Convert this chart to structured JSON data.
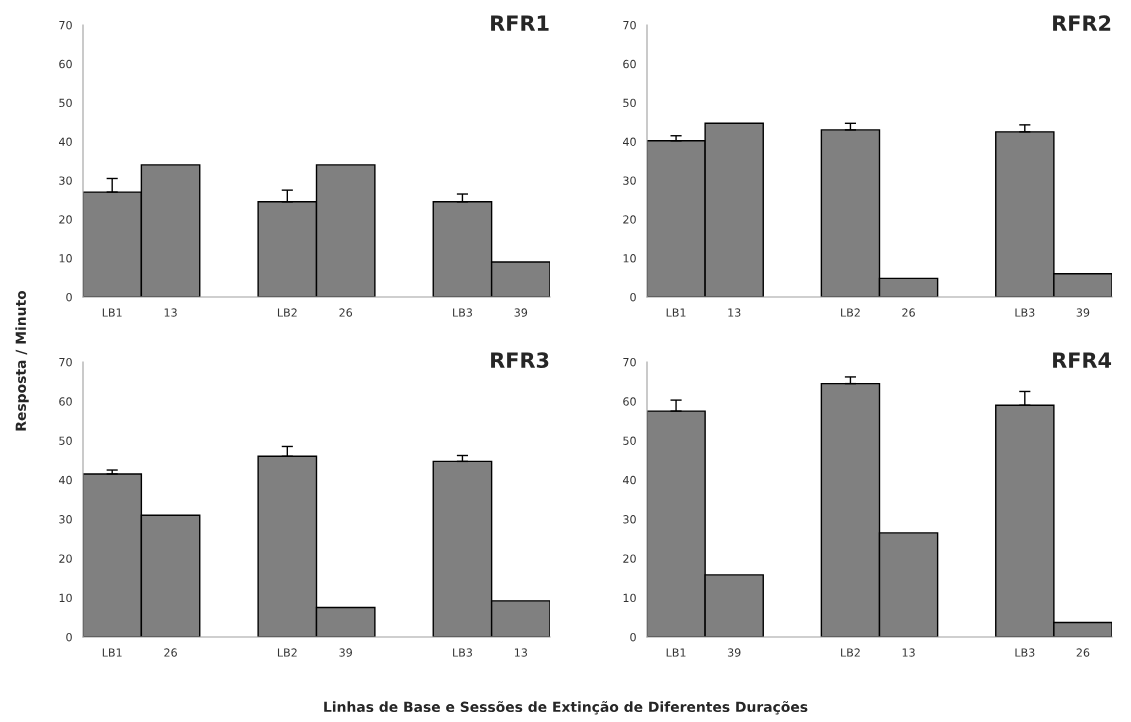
{
  "chart_data": [
    {
      "type": "bar",
      "title": "RFR1",
      "ylabel": "Resposta / Minuto",
      "xlabel": "Linhas de Base e Sessões de Extinção de Diferentes Durações",
      "categories": [
        "LB1",
        "13",
        null,
        "LB2",
        "26",
        null,
        "LB3",
        "39"
      ],
      "values": [
        27,
        34,
        null,
        24.5,
        34,
        null,
        24.5,
        9
      ],
      "errors": [
        [
          27,
          30.5
        ],
        null,
        null,
        [
          24.5,
          27.5
        ],
        null,
        null,
        [
          24.5,
          26.5
        ],
        null
      ],
      "color": "#808080",
      "ylim": [
        0,
        70
      ],
      "yticks": [
        0,
        10,
        20,
        30,
        40,
        50,
        60,
        70
      ],
      "grid": false
    },
    {
      "type": "bar",
      "title": "RFR2",
      "categories": [
        "LB1",
        "13",
        null,
        "LB2",
        "26",
        null,
        "LB3",
        "39"
      ],
      "values": [
        40.2,
        44.7,
        null,
        43,
        4.8,
        null,
        42.5,
        6
      ],
      "errors": [
        [
          40.2,
          41.5
        ],
        null,
        null,
        [
          43,
          44.7
        ],
        null,
        null,
        [
          42.5,
          44.3
        ],
        null
      ],
      "color": "#808080",
      "ylim": [
        0,
        70
      ],
      "yticks": [
        0,
        10,
        20,
        30,
        40,
        50,
        60,
        70
      ],
      "grid": false
    },
    {
      "type": "bar",
      "title": "RFR3",
      "categories": [
        "LB1",
        "26",
        null,
        "LB2",
        "39",
        null,
        "LB3",
        "13"
      ],
      "values": [
        41.5,
        31,
        null,
        46,
        7.5,
        null,
        44.7,
        9.2
      ],
      "errors": [
        [
          41.5,
          42.5
        ],
        null,
        null,
        [
          46,
          48.5
        ],
        null,
        null,
        [
          44.7,
          46.2
        ],
        null
      ],
      "color": "#808080",
      "ylim": [
        0,
        70
      ],
      "yticks": [
        0,
        10,
        20,
        30,
        40,
        50,
        60,
        70
      ],
      "grid": false
    },
    {
      "type": "bar",
      "title": "RFR4",
      "categories": [
        "LB1",
        "39",
        null,
        "LB2",
        "13",
        null,
        "LB3",
        "26"
      ],
      "values": [
        57.5,
        15.8,
        null,
        64.5,
        26.5,
        null,
        59,
        3.7
      ],
      "errors": [
        [
          57.5,
          60.3
        ],
        null,
        null,
        [
          64.5,
          66.2
        ],
        null,
        null,
        [
          59,
          62.5
        ],
        null
      ],
      "color": "#808080",
      "ylim": [
        0,
        70
      ],
      "yticks": [
        0,
        10,
        20,
        30,
        40,
        50,
        60,
        70
      ],
      "grid": false
    }
  ]
}
